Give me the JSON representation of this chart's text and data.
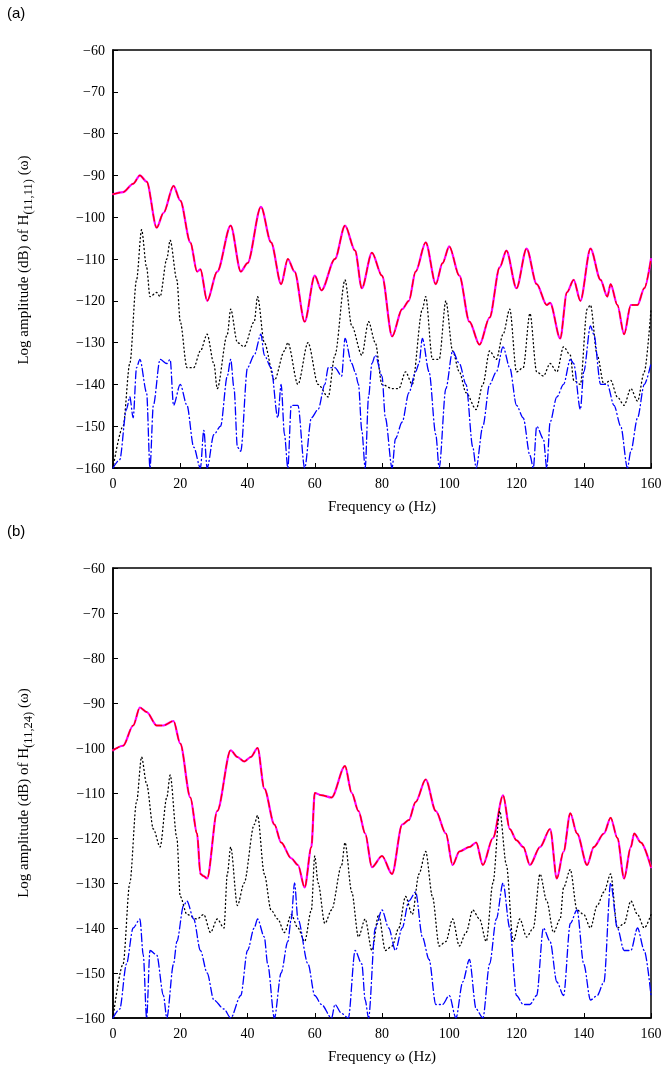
{
  "chart_data": [
    {
      "type": "line",
      "title": "(a)",
      "xlabel": "Frequency ω (Hz)",
      "ylabel": "Log amplitude (dB) of H$_{(11,11)}$ (ω)",
      "xlim": [
        0,
        160
      ],
      "xticks": [
        0,
        20,
        40,
        60,
        80,
        100,
        120,
        140,
        160
      ],
      "ylim": [
        -160,
        -60
      ],
      "yticks": [
        -160,
        -150,
        -140,
        -130,
        -120,
        -110,
        -100,
        -90,
        -80,
        -70,
        -60
      ],
      "grid": false,
      "marker": "none",
      "series": [
        {
          "color": "#ff00ff",
          "line_style": "solid",
          "x": [
            0,
            3,
            6,
            8,
            10,
            13,
            15,
            18,
            20,
            23,
            25,
            26,
            28,
            31,
            35,
            38,
            40,
            44,
            47,
            50,
            52,
            54,
            57,
            60,
            62,
            66,
            69,
            72,
            74,
            77,
            80,
            83,
            86,
            88,
            90,
            93,
            96,
            98,
            100,
            103,
            106,
            109,
            112,
            115,
            117,
            120,
            123,
            126,
            129,
            130,
            133,
            135,
            137,
            139,
            142,
            145,
            147,
            148,
            150,
            152,
            154,
            156,
            158,
            160
          ],
          "values": [
            -94.5,
            -94,
            -92,
            -90,
            -91.5,
            -102.5,
            -99,
            -92.5,
            -96,
            -106,
            -113,
            -112.5,
            -120,
            -113,
            -102,
            -113,
            -111,
            -97.5,
            -106,
            -116,
            -110,
            -113,
            -125,
            -114,
            -117.5,
            -110,
            -102,
            -108,
            -117,
            -108.5,
            -114,
            -128.5,
            -122,
            -120,
            -113,
            -106,
            -116,
            -111,
            -107,
            -114,
            -125,
            -130.5,
            -124,
            -112,
            -108,
            -117,
            -107.5,
            -116,
            -121,
            -120.5,
            -129,
            -118,
            -115,
            -120,
            -107.5,
            -115,
            -119,
            -116,
            -121,
            -128,
            -121,
            -121,
            -117,
            -110
          ]
        },
        {
          "color": "#ff0000",
          "line_style": "dashed",
          "x": [
            0,
            3,
            6,
            8,
            10,
            13,
            15,
            18,
            20,
            23,
            25,
            26,
            28,
            31,
            35,
            38,
            40,
            44,
            47,
            50,
            52,
            54,
            57,
            60,
            62,
            66,
            69,
            72,
            74,
            77,
            80,
            83,
            86,
            88,
            90,
            93,
            96,
            98,
            100,
            103,
            106,
            109,
            112,
            115,
            117,
            120,
            123,
            126,
            129,
            130,
            133,
            135,
            137,
            139,
            142,
            145,
            147,
            148,
            150,
            152,
            154,
            156,
            158,
            160
          ],
          "values": [
            -94.5,
            -94,
            -92,
            -90,
            -91.5,
            -102.5,
            -99,
            -92.5,
            -96,
            -106,
            -113,
            -112.5,
            -120,
            -113,
            -102,
            -113,
            -111,
            -97.5,
            -106,
            -116,
            -110,
            -113,
            -125,
            -114,
            -117.5,
            -110,
            -102,
            -108,
            -117,
            -108.5,
            -114,
            -128.5,
            -122,
            -120,
            -113,
            -106,
            -116,
            -111,
            -107,
            -114,
            -125,
            -130.5,
            -124,
            -112,
            -108,
            -117,
            -107.5,
            -116,
            -121,
            -120.5,
            -129,
            -118,
            -115,
            -120,
            -107.5,
            -115,
            -119,
            -116,
            -121,
            -128,
            -121,
            -121,
            -117,
            -110
          ]
        },
        {
          "color": "#000000",
          "line_style": "dotted",
          "x": [
            0,
            3,
            5,
            7,
            8.5,
            10,
            11,
            13,
            14,
            16,
            17,
            19,
            20,
            22,
            24,
            26,
            28,
            30,
            31,
            34,
            35,
            37,
            39,
            42,
            43,
            45,
            48,
            51,
            52,
            55,
            58,
            61,
            64,
            66,
            69,
            71,
            74,
            76,
            78,
            80,
            83,
            85,
            87,
            89,
            92,
            93,
            95,
            97,
            99,
            101,
            103,
            105,
            108,
            110,
            112,
            114,
            116,
            118,
            120,
            122,
            124,
            126,
            128,
            130,
            132,
            134,
            136,
            137,
            139,
            141,
            142,
            144,
            146,
            148,
            150,
            152,
            154,
            156,
            158,
            160
          ],
          "values": [
            -160,
            -150,
            -135,
            -115,
            -103,
            -112,
            -119,
            -118,
            -119,
            -110,
            -105.5,
            -115,
            -125,
            -136,
            -136,
            -132,
            -128,
            -135,
            -141,
            -128,
            -122,
            -130,
            -131,
            -125,
            -119,
            -130,
            -139,
            -132,
            -130,
            -140,
            -130,
            -140,
            -143,
            -133,
            -115,
            -126,
            -133,
            -125,
            -130,
            -140,
            -141,
            -141,
            -137,
            -140,
            -122,
            -119,
            -134,
            -134,
            -120,
            -132,
            -137,
            -142,
            -146,
            -140,
            -132,
            -134,
            -128,
            -122,
            -137,
            -136,
            -123,
            -137,
            -138,
            -135,
            -137,
            -131,
            -133,
            -139,
            -140,
            -122,
            -121,
            -133,
            -140,
            -139,
            -143,
            -145,
            -141,
            -144,
            -137,
            -122
          ]
        },
        {
          "color": "#0000ff",
          "line_style": "dashdot",
          "x": [
            0,
            2,
            4,
            5,
            6,
            7,
            8,
            10,
            11,
            12,
            14,
            16,
            17,
            18,
            20,
            22,
            24,
            26,
            27,
            28,
            30,
            32,
            34,
            35,
            36,
            37,
            38,
            40,
            42,
            44,
            45,
            47,
            49,
            50,
            51,
            52,
            53,
            55,
            57,
            59,
            61,
            63,
            64,
            66,
            68,
            69,
            71,
            72,
            73,
            74,
            75,
            76,
            77,
            78,
            80,
            81,
            83,
            84,
            86,
            88,
            90,
            91,
            92,
            94,
            96,
            97,
            99,
            101,
            103,
            105,
            107,
            108,
            110,
            112,
            114,
            116,
            118,
            120,
            122,
            124,
            125,
            126,
            128,
            129,
            130,
            132,
            134,
            136,
            137,
            139,
            140,
            142,
            143,
            145,
            147,
            149,
            151,
            153,
            154,
            156,
            158,
            160
          ],
          "values": [
            -160,
            -158,
            -146,
            -143,
            -148,
            -136,
            -134,
            -142,
            -160,
            -145,
            -134,
            -135,
            -134,
            -145,
            -140,
            -145,
            -155,
            -160,
            -151,
            -160,
            -152,
            -150,
            -138,
            -134,
            -141,
            -155,
            -156,
            -136,
            -133,
            -128,
            -133,
            -136,
            -148,
            -140,
            -152,
            -160,
            -145,
            -145,
            -160,
            -148,
            -146,
            -140,
            -136,
            -136,
            -138,
            -129,
            -135,
            -137,
            -140,
            -151,
            -160,
            -143,
            -135,
            -133,
            -138,
            -148,
            -160,
            -153,
            -149,
            -142,
            -137,
            -135,
            -129,
            -137,
            -152,
            -160,
            -141,
            -132,
            -135,
            -140,
            -155,
            -160,
            -150,
            -140,
            -137,
            -131,
            -136,
            -145,
            -148,
            -157,
            -160,
            -150,
            -153,
            -160,
            -149,
            -143,
            -140,
            -134,
            -135,
            -146,
            -137,
            -126,
            -128,
            -140,
            -140,
            -145,
            -150,
            -160,
            -156,
            -148,
            -140,
            -135
          ]
        }
      ]
    },
    {
      "type": "line",
      "title": "(b)",
      "xlabel": "Frequency ω (Hz)",
      "ylabel": "Log amplitude (dB) of H$_{(11,24)}$ (ω)",
      "xlim": [
        0,
        160
      ],
      "xticks": [
        0,
        20,
        40,
        60,
        80,
        100,
        120,
        140,
        160
      ],
      "ylim": [
        -160,
        -60
      ],
      "yticks": [
        -160,
        -150,
        -140,
        -130,
        -120,
        -110,
        -100,
        -90,
        -80,
        -70,
        -60
      ],
      "grid": false,
      "marker": "none",
      "series": [
        {
          "color": "#ff00ff",
          "line_style": "solid",
          "x": [
            0,
            3,
            6,
            8,
            10,
            13,
            15,
            18,
            20,
            23,
            25,
            26,
            27,
            28,
            31,
            35,
            37,
            39,
            41,
            43,
            45,
            48,
            50,
            53,
            55,
            57,
            59,
            60,
            62,
            65,
            69,
            71,
            73,
            75,
            77,
            80,
            83,
            86,
            88,
            90,
            93,
            96,
            99,
            101,
            103,
            106,
            108,
            110,
            113,
            116,
            118,
            120,
            122,
            124,
            127,
            130,
            132,
            134,
            136,
            138,
            141,
            143,
            146,
            148,
            150,
            152,
            154,
            155,
            157,
            160
          ],
          "values": [
            -100.5,
            -99.5,
            -95,
            -91,
            -92,
            -95,
            -95,
            -94,
            -99,
            -111,
            -119,
            -128,
            -128.5,
            -129,
            -114,
            -100.5,
            -102,
            -103,
            -102,
            -100,
            -109,
            -117,
            -121,
            -124.5,
            -126,
            -131,
            -122,
            -110,
            -110.5,
            -111,
            -104,
            -110,
            -114,
            -119,
            -126.5,
            -124,
            -128,
            -117,
            -116,
            -112,
            -107,
            -114,
            -119,
            -126,
            -123,
            -122,
            -121,
            -126,
            -120,
            -110.5,
            -118,
            -120.5,
            -122,
            -126,
            -122,
            -118,
            -129,
            -123,
            -114.5,
            -119,
            -126,
            -122,
            -119,
            -115.5,
            -120,
            -129,
            -122,
            -119,
            -121,
            -126.5
          ]
        },
        {
          "color": "#ff0000",
          "line_style": "dashed",
          "x": [
            0,
            3,
            6,
            8,
            10,
            13,
            15,
            18,
            20,
            23,
            25,
            26,
            27,
            28,
            31,
            35,
            37,
            39,
            41,
            43,
            45,
            48,
            50,
            53,
            55,
            57,
            59,
            60,
            62,
            65,
            69,
            71,
            73,
            75,
            77,
            80,
            83,
            86,
            88,
            90,
            93,
            96,
            99,
            101,
            103,
            106,
            108,
            110,
            113,
            116,
            118,
            120,
            122,
            124,
            127,
            130,
            132,
            134,
            136,
            138,
            141,
            143,
            146,
            148,
            150,
            152,
            154,
            155,
            157,
            160
          ],
          "values": [
            -100.5,
            -99.5,
            -95,
            -91,
            -92,
            -95,
            -95,
            -94,
            -99,
            -111,
            -119,
            -128,
            -128.5,
            -129,
            -114,
            -100.5,
            -102,
            -103,
            -102,
            -100,
            -109,
            -117,
            -121,
            -124.5,
            -126,
            -131,
            -122,
            -110,
            -110.5,
            -111,
            -104,
            -110,
            -114,
            -119,
            -126.5,
            -124,
            -128,
            -117,
            -116,
            -112,
            -107,
            -114,
            -119,
            -126,
            -123,
            -122,
            -121,
            -126,
            -120,
            -110.5,
            -118,
            -120.5,
            -122,
            -126,
            -122,
            -118,
            -129,
            -123,
            -114.5,
            -119,
            -126,
            -122,
            -119,
            -115.5,
            -120,
            -129,
            -122,
            -119,
            -121,
            -126.5
          ]
        },
        {
          "color": "#000000",
          "line_style": "dotted",
          "x": [
            0,
            3,
            5,
            7,
            8.5,
            10,
            12,
            14,
            16,
            17,
            19,
            20,
            22,
            25,
            27,
            29,
            31,
            33,
            34,
            35,
            37,
            39,
            42,
            43,
            45,
            47,
            49,
            51,
            53,
            55,
            57,
            59,
            60,
            61,
            63,
            65,
            68,
            69,
            71,
            73,
            75,
            77,
            79,
            81,
            83,
            85,
            87,
            89,
            91,
            93,
            95,
            97,
            99,
            101,
            103,
            105,
            107,
            109,
            111,
            113,
            115,
            117,
            119,
            121,
            123,
            125,
            127,
            129,
            131,
            133,
            134,
            136,
            138,
            140,
            142,
            144,
            146,
            148,
            150,
            152,
            154,
            156,
            158,
            160
          ],
          "values": [
            -160,
            -148,
            -130,
            -112,
            -102,
            -108,
            -118,
            -122,
            -111,
            -106,
            -120,
            -133,
            -137,
            -138,
            -137,
            -141,
            -138,
            -140,
            -128,
            -122,
            -135,
            -130,
            -117,
            -115,
            -128,
            -136,
            -138,
            -141,
            -137,
            -140,
            -143,
            -136,
            -124,
            -130,
            -139,
            -136,
            -126,
            -121,
            -132,
            -142,
            -138,
            -145,
            -137,
            -145,
            -144,
            -140,
            -133,
            -137,
            -128,
            -123,
            -133,
            -144,
            -143,
            -138,
            -144,
            -141,
            -136,
            -138,
            -143,
            -130,
            -114,
            -126,
            -143,
            -138,
            -142,
            -140,
            -128,
            -134,
            -141,
            -138,
            -131,
            -127,
            -136,
            -137,
            -140,
            -135,
            -132,
            -128,
            -140,
            -139,
            -134,
            -137,
            -140,
            -137
          ]
        },
        {
          "color": "#0000ff",
          "line_style": "dashdot",
          "x": [
            0,
            2,
            4,
            6,
            8,
            9,
            10,
            11,
            13,
            15,
            16,
            18,
            19,
            21,
            22,
            24,
            26,
            28,
            30,
            33,
            35,
            38,
            40,
            42,
            43,
            45,
            46,
            48,
            50,
            52,
            53,
            54,
            55,
            58,
            60,
            62,
            65,
            66,
            68,
            70,
            72,
            74,
            75,
            76,
            78,
            80,
            82,
            84,
            86,
            88,
            90,
            92,
            94,
            96,
            98,
            100,
            102,
            104,
            106,
            108,
            110,
            112,
            114,
            116,
            118,
            120,
            122,
            124,
            126,
            128,
            130,
            132,
            134,
            136,
            138,
            140,
            142,
            144,
            146,
            148,
            150,
            152,
            154,
            156,
            158,
            160
          ],
          "values": [
            -160,
            -158,
            -148,
            -140,
            -138,
            -146,
            -160,
            -145,
            -146,
            -155,
            -160,
            -148,
            -143,
            -135,
            -134,
            -138,
            -145,
            -150,
            -156,
            -158,
            -160,
            -155,
            -145,
            -140,
            -138,
            -142,
            -148,
            -160,
            -150,
            -143,
            -138,
            -130,
            -138,
            -148,
            -155,
            -157,
            -160,
            -157,
            -159,
            -160,
            -145,
            -148,
            -156,
            -160,
            -140,
            -136,
            -140,
            -145,
            -140,
            -134,
            -132,
            -142,
            -147,
            -157,
            -157,
            -155,
            -160,
            -152,
            -147,
            -158,
            -160,
            -148,
            -138,
            -130,
            -140,
            -155,
            -157,
            -157,
            -155,
            -140,
            -143,
            -152,
            -155,
            -139,
            -136,
            -148,
            -156,
            -155,
            -152,
            -130,
            -140,
            -145,
            -145,
            -140,
            -145,
            -155
          ]
        }
      ]
    }
  ]
}
